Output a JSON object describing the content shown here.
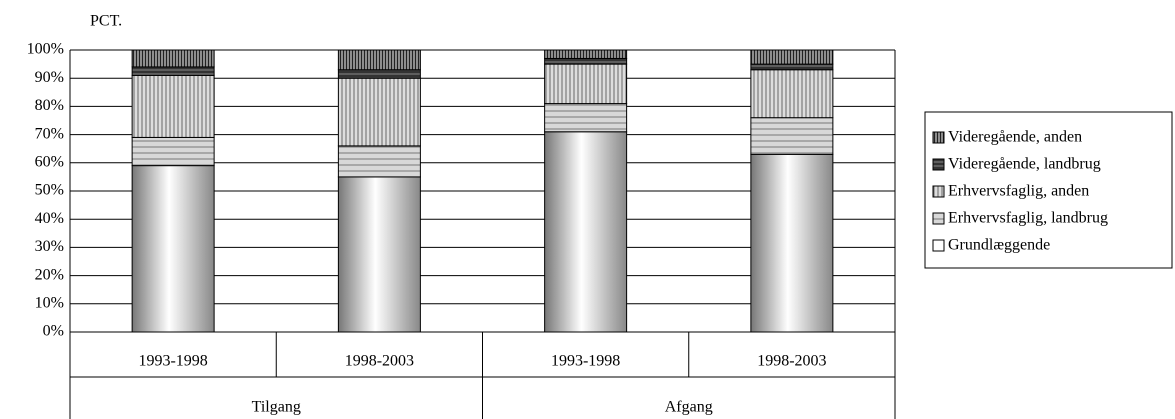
{
  "chart_data": {
    "type": "stacked_bar",
    "y_label": "PCT.",
    "categories": [
      "1993-1998",
      "1998-2003",
      "1993-1998",
      "1998-2003"
    ],
    "groups": [
      "Tilgang",
      "Afgang"
    ],
    "ylim": [
      0,
      100
    ],
    "yticks": [
      {
        "value": 0,
        "label": "0%"
      },
      {
        "value": 10,
        "label": "10%"
      },
      {
        "value": 20,
        "label": "20%"
      },
      {
        "value": 30,
        "label": "30%"
      },
      {
        "value": 40,
        "label": "40%"
      },
      {
        "value": 50,
        "label": "50%"
      },
      {
        "value": 60,
        "label": "60%"
      },
      {
        "value": 70,
        "label": "70%"
      },
      {
        "value": 80,
        "label": "80%"
      },
      {
        "value": 90,
        "label": "90%"
      },
      {
        "value": 100,
        "label": "100%"
      }
    ],
    "grid": true,
    "legend": "right",
    "series": [
      {
        "name": "Grundlæggende",
        "color": "#ffffff",
        "values": [
          59,
          55,
          71,
          63
        ]
      },
      {
        "name": "Erhvervsfaglig, landbrug",
        "color": "#c8c8c8",
        "values": [
          10,
          11,
          10,
          13
        ]
      },
      {
        "name": "Erhvervsfaglig, anden",
        "color": "#b4b4b4",
        "values": [
          22,
          24,
          14,
          17
        ]
      },
      {
        "name": "Videregående, landbrug",
        "color": "#505050",
        "values": [
          3,
          3,
          2,
          2
        ]
      },
      {
        "name": "Videregående, anden",
        "color": "#6e6e6e",
        "values": [
          6,
          7,
          3,
          5
        ]
      }
    ]
  }
}
